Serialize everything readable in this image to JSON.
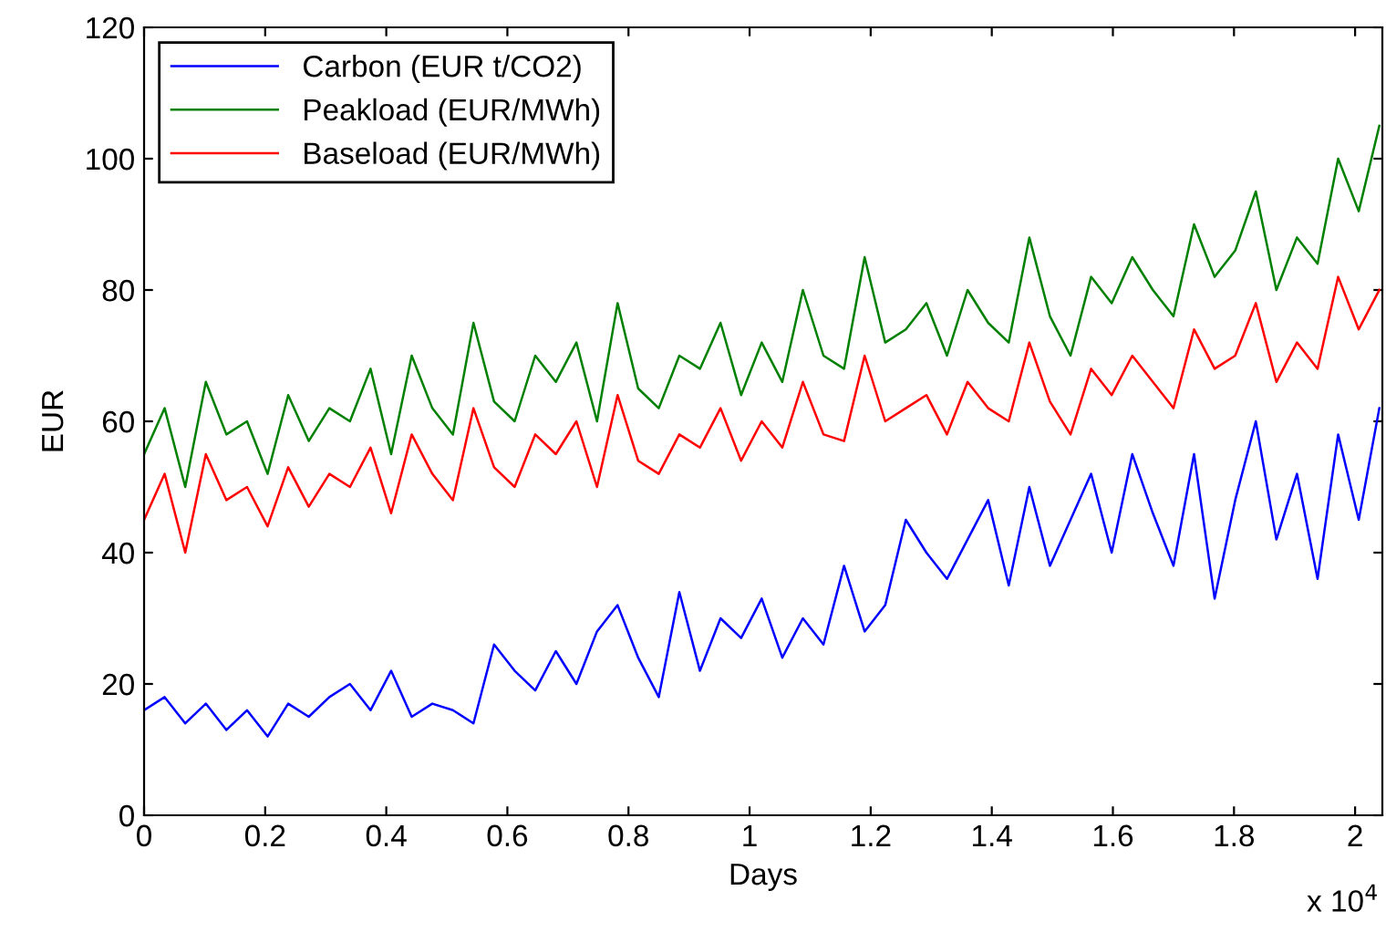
{
  "chart_data": {
    "type": "line",
    "xlabel": "Days",
    "ylabel": "EUR",
    "x": [
      0,
      0.034,
      0.068,
      0.102,
      0.136,
      0.17,
      0.204,
      0.238,
      0.272,
      0.306,
      0.34,
      0.374,
      0.408,
      0.442,
      0.476,
      0.51,
      0.544,
      0.578,
      0.612,
      0.646,
      0.68,
      0.714,
      0.748,
      0.782,
      0.816,
      0.85,
      0.884,
      0.918,
      0.952,
      0.986,
      1.02,
      1.054,
      1.088,
      1.122,
      1.156,
      1.19,
      1.224,
      1.258,
      1.292,
      1.326,
      1.36,
      1.394,
      1.428,
      1.462,
      1.496,
      1.53,
      1.564,
      1.598,
      1.632,
      1.666,
      1.7,
      1.734,
      1.768,
      1.802,
      1.836,
      1.87,
      1.904,
      1.938,
      1.972,
      2.006,
      2.04
    ],
    "series": [
      {
        "name": "Carbon (EUR t/CO2)",
        "color": "#0000ff",
        "values": [
          16,
          18,
          14,
          17,
          13,
          16,
          12,
          17,
          15,
          18,
          20,
          16,
          22,
          15,
          17,
          16,
          14,
          26,
          22,
          19,
          25,
          20,
          28,
          32,
          24,
          18,
          34,
          22,
          30,
          27,
          33,
          24,
          30,
          26,
          38,
          28,
          32,
          45,
          40,
          36,
          42,
          48,
          35,
          50,
          38,
          45,
          52,
          40,
          55,
          46,
          38,
          55,
          33,
          48,
          60,
          42,
          52,
          36,
          58,
          45,
          62
        ]
      },
      {
        "name": "Peakload (EUR/MWh)",
        "color": "#008000",
        "values": [
          55,
          62,
          50,
          66,
          58,
          60,
          52,
          64,
          57,
          62,
          60,
          68,
          55,
          70,
          62,
          58,
          75,
          63,
          60,
          70,
          66,
          72,
          60,
          78,
          65,
          62,
          70,
          68,
          75,
          64,
          72,
          66,
          80,
          70,
          68,
          85,
          72,
          74,
          78,
          70,
          80,
          75,
          72,
          88,
          76,
          70,
          82,
          78,
          85,
          80,
          76,
          90,
          82,
          86,
          95,
          80,
          88,
          84,
          100,
          92,
          105
        ]
      },
      {
        "name": "Baseload (EUR/MWh)",
        "color": "#ff0000",
        "values": [
          45,
          52,
          40,
          55,
          48,
          50,
          44,
          53,
          47,
          52,
          50,
          56,
          46,
          58,
          52,
          48,
          62,
          53,
          50,
          58,
          55,
          60,
          50,
          64,
          54,
          52,
          58,
          56,
          62,
          54,
          60,
          56,
          66,
          58,
          57,
          70,
          60,
          62,
          64,
          58,
          66,
          62,
          60,
          72,
          63,
          58,
          68,
          64,
          70,
          66,
          62,
          74,
          68,
          70,
          78,
          66,
          72,
          68,
          82,
          74,
          80
        ]
      }
    ],
    "xlim": [
      0,
      2.045
    ],
    "xticks": [
      0,
      0.2,
      0.4,
      0.6,
      0.8,
      1,
      1.2,
      1.4,
      1.6,
      1.8,
      2
    ],
    "ylim": [
      0,
      120
    ],
    "yticks": [
      0,
      20,
      40,
      60,
      80,
      100,
      120
    ],
    "annotations": [
      "x 10$^{4}$"
    ],
    "grid": false,
    "legend": "top left",
    "line_style": "solid",
    "marker": "none"
  }
}
